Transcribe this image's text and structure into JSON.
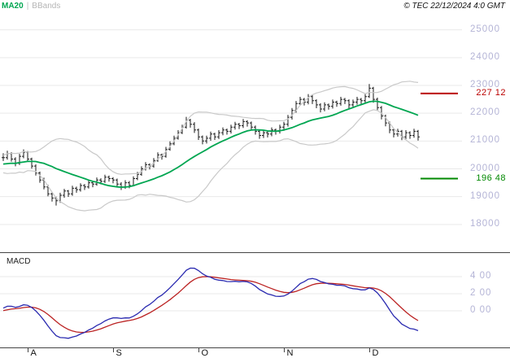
{
  "header": {
    "ma20_label": "MA20",
    "separator": "|",
    "bbands_label": "BBands",
    "copyright": "© TEC 22/12/2024 4:0 GMT"
  },
  "colors": {
    "ma20": "#00a651",
    "bbands": "#c9c9c9",
    "candles": "#1a1a1a",
    "macd_line": "#2a2ab0",
    "macd_signal": "#bb2222",
    "grid": "#e9e9e9",
    "axis_text": "#b4b4d6",
    "frame": "#444444",
    "resistance": "#bb0000",
    "support": "#008800"
  },
  "chart_data": {
    "type": "candlestick",
    "x_axis": {
      "month_labels": [
        "A",
        "S",
        "O",
        "N",
        "D"
      ],
      "month_indices": [
        6,
        27,
        48,
        69,
        90
      ]
    },
    "price_panel": {
      "ylim": [
        17000,
        25400
      ],
      "tick_values": [
        25000,
        24000,
        23000,
        22000,
        21000,
        20000,
        19000,
        18000
      ],
      "tick_labels": [
        "25000",
        "24000",
        "23000",
        "22000",
        "21000",
        "20000",
        "19000",
        "18000"
      ],
      "overlays": {
        "ma_period": 20,
        "bb_period": 20,
        "bb_stddev": 2
      },
      "levels": [
        {
          "name": "resistance",
          "value": 22712,
          "label": "227 12",
          "color": "#bb0000"
        },
        {
          "name": "support",
          "value": 19648,
          "label": "196 48",
          "color": "#008800"
        }
      ],
      "candle_format": [
        "high",
        "low",
        "close"
      ],
      "open_rule": "previous close",
      "pre_closes": [
        20250,
        20050,
        20300,
        19900,
        20200,
        19850,
        20150,
        19950,
        20300,
        20000,
        20250,
        20050,
        20350,
        20100,
        20300,
        20150,
        20350,
        20200,
        20350
      ],
      "candles": [
        [
          20560,
          20280,
          20400
        ],
        [
          20650,
          20330,
          20550
        ],
        [
          20600,
          20260,
          20350
        ],
        [
          20420,
          20090,
          20200
        ],
        [
          20540,
          20140,
          20450
        ],
        [
          20700,
          20380,
          20600
        ],
        [
          20640,
          20260,
          20350
        ],
        [
          20400,
          20010,
          20100
        ],
        [
          20160,
          19760,
          19850
        ],
        [
          19900,
          19500,
          19600
        ],
        [
          19680,
          19260,
          19350
        ],
        [
          19420,
          19010,
          19100
        ],
        [
          19160,
          18820,
          18950
        ],
        [
          19000,
          18680,
          18850
        ],
        [
          19140,
          18780,
          19050
        ],
        [
          19280,
          18960,
          19200
        ],
        [
          19240,
          18990,
          19100
        ],
        [
          19390,
          19030,
          19300
        ],
        [
          19360,
          19140,
          19250
        ],
        [
          19480,
          19180,
          19400
        ],
        [
          19450,
          19240,
          19350
        ],
        [
          19590,
          19290,
          19500
        ],
        [
          19560,
          19340,
          19450
        ],
        [
          19690,
          19390,
          19600
        ],
        [
          19660,
          19440,
          19550
        ],
        [
          19790,
          19490,
          19700
        ],
        [
          19760,
          19540,
          19650
        ],
        [
          19700,
          19480,
          19600
        ],
        [
          19650,
          19330,
          19450
        ],
        [
          19520,
          19240,
          19350
        ],
        [
          19590,
          19280,
          19500
        ],
        [
          19560,
          19300,
          19400
        ],
        [
          19730,
          19370,
          19650
        ],
        [
          19890,
          19590,
          19800
        ],
        [
          20090,
          19750,
          20000
        ],
        [
          20240,
          19940,
          20150
        ],
        [
          20200,
          19980,
          20100
        ],
        [
          20390,
          20040,
          20300
        ],
        [
          20590,
          20250,
          20500
        ],
        [
          20550,
          20330,
          20450
        ],
        [
          20790,
          20400,
          20700
        ],
        [
          20990,
          20650,
          20900
        ],
        [
          21190,
          20850,
          21100
        ],
        [
          21390,
          21050,
          21300
        ],
        [
          21590,
          21250,
          21500
        ],
        [
          21870,
          21450,
          21750
        ],
        [
          21800,
          21480,
          21600
        ],
        [
          21680,
          21290,
          21400
        ],
        [
          21450,
          21040,
          21150
        ],
        [
          21200,
          20880,
          21000
        ],
        [
          21190,
          20910,
          21100
        ],
        [
          21340,
          21010,
          21250
        ],
        [
          21300,
          21040,
          21150
        ],
        [
          21390,
          21070,
          21300
        ],
        [
          21490,
          21210,
          21400
        ],
        [
          21450,
          21230,
          21350
        ],
        [
          21590,
          21270,
          21500
        ],
        [
          21690,
          21410,
          21600
        ],
        [
          21650,
          21430,
          21550
        ],
        [
          21790,
          21470,
          21700
        ],
        [
          21750,
          21520,
          21650
        ],
        [
          21700,
          21380,
          21500
        ],
        [
          21560,
          21230,
          21350
        ],
        [
          21420,
          21080,
          21200
        ],
        [
          21390,
          21110,
          21300
        ],
        [
          21350,
          21130,
          21250
        ],
        [
          21490,
          21170,
          21400
        ],
        [
          21450,
          21230,
          21350
        ],
        [
          21590,
          21270,
          21500
        ],
        [
          21690,
          21370,
          21600
        ],
        [
          21940,
          21520,
          21850
        ],
        [
          22190,
          21770,
          22100
        ],
        [
          22440,
          22020,
          22350
        ],
        [
          22590,
          22270,
          22500
        ],
        [
          22550,
          22280,
          22400
        ],
        [
          22690,
          22320,
          22600
        ],
        [
          22650,
          22330,
          22450
        ],
        [
          22500,
          22180,
          22300
        ],
        [
          22360,
          22030,
          22150
        ],
        [
          22390,
          22070,
          22300
        ],
        [
          22350,
          22130,
          22250
        ],
        [
          22490,
          22170,
          22400
        ],
        [
          22450,
          22230,
          22350
        ],
        [
          22590,
          22270,
          22500
        ],
        [
          22550,
          22330,
          22450
        ],
        [
          22500,
          22180,
          22300
        ],
        [
          22490,
          22210,
          22400
        ],
        [
          22590,
          22310,
          22500
        ],
        [
          22550,
          22330,
          22450
        ],
        [
          22690,
          22370,
          22600
        ],
        [
          23050,
          22550,
          22900
        ],
        [
          22950,
          22380,
          22500
        ],
        [
          22560,
          22080,
          22200
        ],
        [
          22260,
          21780,
          21900
        ],
        [
          21950,
          21530,
          21650
        ],
        [
          21700,
          21280,
          21400
        ],
        [
          21450,
          21130,
          21250
        ],
        [
          21440,
          21160,
          21350
        ],
        [
          21400,
          21030,
          21150
        ],
        [
          21390,
          21070,
          21300
        ],
        [
          21350,
          21080,
          21200
        ],
        [
          21440,
          21120,
          21350
        ],
        [
          21400,
          21020,
          21150
        ]
      ]
    },
    "macd_panel": {
      "label": "MACD",
      "params": {
        "fast": 12,
        "slow": 26,
        "signal": 9
      },
      "tick_values": [
        400,
        200,
        0
      ],
      "tick_labels": [
        "4 00",
        "2 00",
        "0 00"
      ]
    }
  }
}
